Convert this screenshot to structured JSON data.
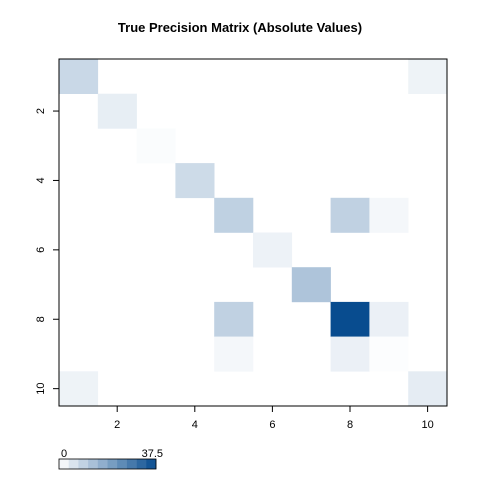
{
  "chart_data": {
    "type": "heatmap",
    "title": "True Precision Matrix (Absolute Values)",
    "xlabel": "",
    "ylabel": "",
    "n": 10,
    "x_ticks": [
      "2",
      "4",
      "6",
      "8",
      "10"
    ],
    "y_ticks": [
      "2",
      "4",
      "6",
      "8",
      "10"
    ],
    "x_tick_values": [
      2,
      4,
      6,
      8,
      10
    ],
    "y_tick_values": [
      2,
      4,
      6,
      8,
      10
    ],
    "colorscale": {
      "min": 0,
      "max": 37.5,
      "min_label": "0",
      "max_label": "37.5",
      "low_color": "#ffffff",
      "high_color": "#084c8f"
    },
    "matrix": [
      [
        8.2,
        0,
        0,
        0,
        0,
        0,
        0,
        0,
        0,
        2.6
      ],
      [
        0,
        3.6,
        0,
        0,
        0,
        0,
        0,
        0,
        0,
        0
      ],
      [
        0,
        0,
        0.7,
        0,
        0,
        0,
        0,
        0,
        0,
        0
      ],
      [
        0,
        0,
        0,
        7.6,
        0,
        0,
        0,
        0,
        0,
        0
      ],
      [
        0,
        0,
        0,
        0,
        9.7,
        0,
        0,
        9.6,
        1.6,
        0
      ],
      [
        0,
        0,
        0,
        0,
        0,
        2.7,
        0,
        0,
        0,
        0
      ],
      [
        0,
        0,
        0,
        0,
        0,
        0,
        12.3,
        0,
        0,
        0
      ],
      [
        0,
        0,
        0,
        0,
        9.6,
        0,
        0,
        37.5,
        3.1,
        0
      ],
      [
        0,
        0,
        0,
        0,
        1.6,
        0,
        0,
        3.1,
        0.5,
        0
      ],
      [
        2.6,
        0,
        0,
        0,
        0,
        0,
        0,
        0,
        0,
        4.0
      ]
    ]
  }
}
